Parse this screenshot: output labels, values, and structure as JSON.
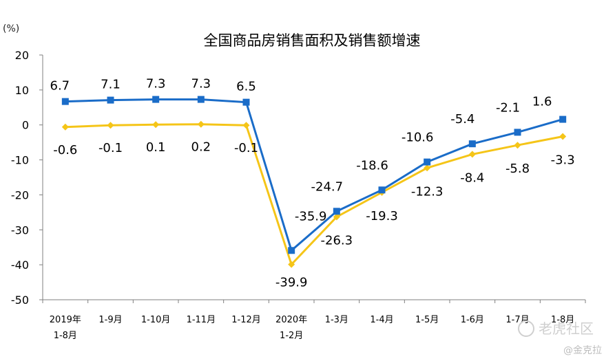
{
  "chart_data": {
    "type": "line",
    "title": "全国商品房销售面积及销售额增速",
    "unit": "(%)",
    "yticks": [
      "20",
      "10",
      "0",
      "-10",
      "-20",
      "-30",
      "-40",
      "-50"
    ],
    "ylim": [
      -50,
      20
    ],
    "categories": [
      [
        "2019年",
        "1-8月"
      ],
      [
        "1-9月"
      ],
      [
        "1-10月"
      ],
      [
        "1-11月"
      ],
      [
        "1-12月"
      ],
      [
        "2020年",
        "1-2月"
      ],
      [
        "1-3月"
      ],
      [
        "1-4月"
      ],
      [
        "1-5月"
      ],
      [
        "1-6月"
      ],
      [
        "1-7月"
      ],
      [
        "1-8月"
      ]
    ],
    "series": [
      {
        "color": "#1a6cc8",
        "marker": "square",
        "values": [
          6.7,
          7.1,
          7.3,
          7.3,
          6.5,
          -35.9,
          -24.7,
          -18.6,
          -10.6,
          -5.4,
          -2.1,
          1.6
        ],
        "labels": [
          "6.7",
          "7.1",
          "7.3",
          "7.3",
          "6.5",
          "-35.9",
          "-24.7",
          "-18.6",
          "-10.6",
          "-5.4",
          "-2.1",
          "1.6"
        ]
      },
      {
        "color": "#f5c518",
        "marker": "diamond",
        "values": [
          -0.6,
          -0.1,
          0.1,
          0.2,
          -0.1,
          -39.9,
          -26.3,
          -19.3,
          -12.3,
          -8.4,
          -5.8,
          -3.3
        ],
        "labels": [
          "-0.6",
          "-0.1",
          "0.1",
          "0.2",
          "-0.1",
          "-39.9",
          "-26.3",
          "-19.3",
          "-12.3",
          "-8.4",
          "-5.8",
          "-3.3"
        ]
      }
    ],
    "grid": false
  },
  "watermark": {
    "brand": "老虎社区",
    "author": "@金克拉"
  }
}
